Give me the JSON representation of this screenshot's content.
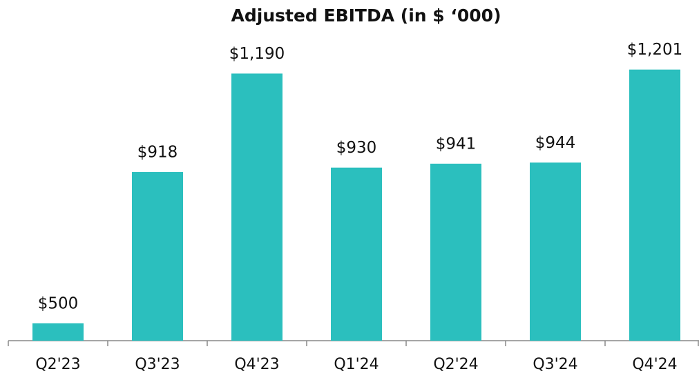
{
  "chart_data": {
    "type": "bar",
    "title": "Adjusted EBITDA (in $ ‘000)",
    "categories": [
      "Q2'23",
      "Q3'23",
      "Q4'23",
      "Q1'24",
      "Q2'24",
      "Q3'24",
      "Q4'24"
    ],
    "values": [
      500,
      918,
      1190,
      930,
      941,
      944,
      1201
    ],
    "value_labels": [
      "$500",
      "$918",
      "$1,190",
      "$930",
      "$941",
      "$944",
      "$1,201"
    ],
    "color": "#2bbfbe",
    "ylim": [
      452,
      1250
    ]
  }
}
